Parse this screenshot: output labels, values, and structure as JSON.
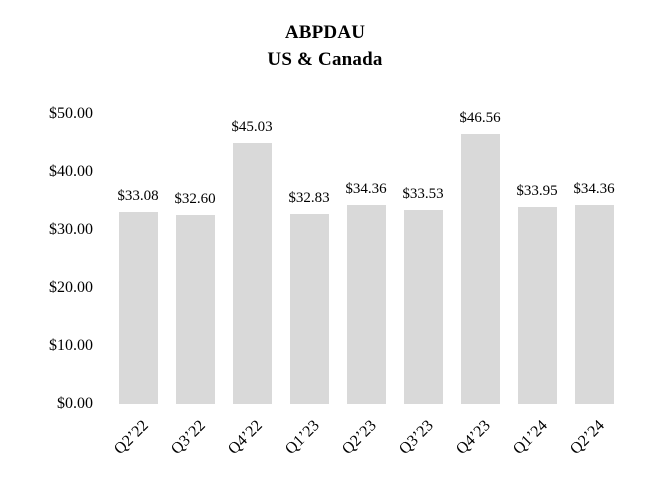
{
  "chart_data": {
    "type": "bar",
    "title": "ABPDAU",
    "subtitle": "US & Canada",
    "categories": [
      "Q2’22",
      "Q3’22",
      "Q4’22",
      "Q1’23",
      "Q2’23",
      "Q3’23",
      "Q4’23",
      "Q1’24",
      "Q2’24"
    ],
    "values": [
      33.08,
      32.6,
      45.03,
      32.83,
      34.36,
      33.53,
      46.56,
      33.95,
      34.36
    ],
    "labels": [
      "$33.08",
      "$32.60",
      "$45.03",
      "$32.83",
      "$34.36",
      "$33.53",
      "$46.56",
      "$33.95",
      "$34.36"
    ],
    "xlabel": "",
    "ylabel": "",
    "ylim": [
      0,
      50
    ],
    "y_ticks": [
      {
        "value": 50,
        "label": "$50.00"
      },
      {
        "value": 40,
        "label": "$40.00"
      },
      {
        "value": 30,
        "label": "$30.00"
      },
      {
        "value": 20,
        "label": "$20.00"
      },
      {
        "value": 10,
        "label": "$10.00"
      },
      {
        "value": 0,
        "label": "$0.00"
      }
    ],
    "grid": false,
    "legend": false,
    "bar_color": "#d9d9d9",
    "background_color": "#ffffff",
    "text_color": "#000000"
  }
}
